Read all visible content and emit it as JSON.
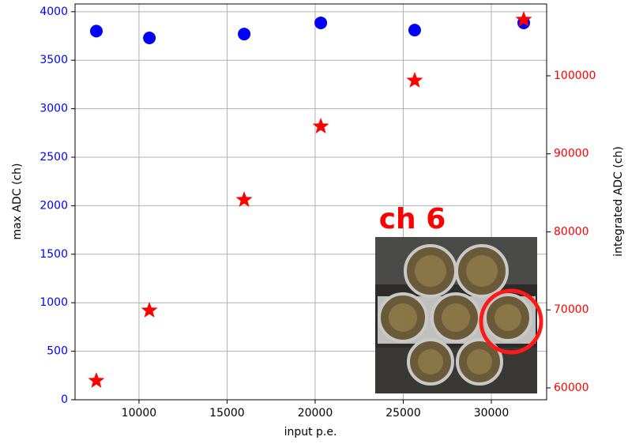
{
  "chart_data": {
    "type": "scatter",
    "xlabel": "input p.e.",
    "ylabel": "max ADC (ch)",
    "y2label": "integrated ADC (ch)",
    "x": [
      7580,
      10590,
      15970,
      20320,
      25650,
      31840
    ],
    "series": [
      {
        "color": "#0000ff",
        "marker": "circle",
        "axis": "y",
        "values": [
          3800,
          3730,
          3770,
          3885,
          3810,
          3885
        ]
      },
      {
        "color": "#ff0000",
        "marker": "star",
        "axis": "y2",
        "values": [
          60910,
          69920,
          84100,
          93520,
          99390,
          107190
        ]
      }
    ],
    "xlim": [
      6370,
      33140
    ],
    "ylim": [
      0,
      4080
    ],
    "y2lim": [
      58480,
      109210
    ],
    "xticks": [
      10000,
      15000,
      20000,
      25000,
      30000
    ],
    "yticks": [
      0,
      500,
      1000,
      1500,
      2000,
      2500,
      3000,
      3500,
      4000
    ],
    "y2ticks": [
      60000,
      70000,
      80000,
      90000,
      100000
    ],
    "grid": true,
    "annotation": "ch 6"
  }
}
